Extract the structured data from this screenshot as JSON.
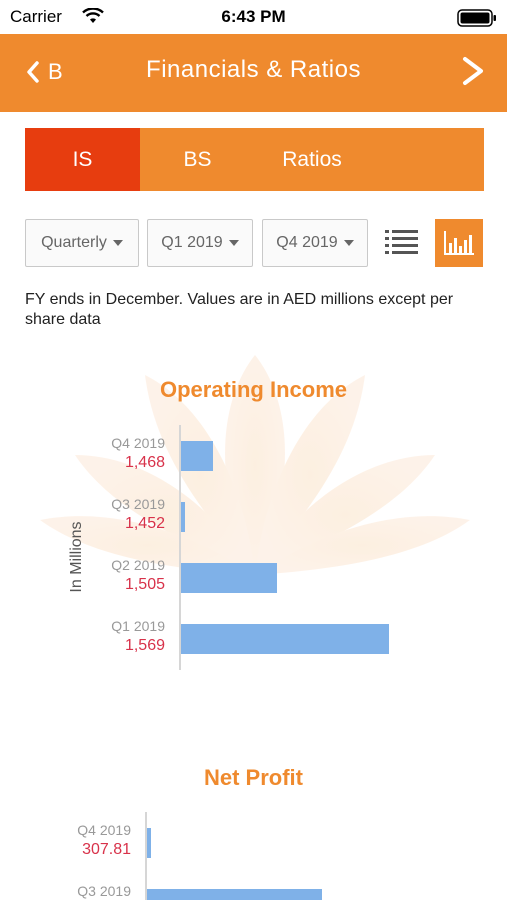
{
  "status": {
    "carrier": "Carrier",
    "time": "6:43 PM"
  },
  "nav": {
    "back_label": "B",
    "title": "Financials & Ratios"
  },
  "tabs": [
    {
      "label": "IS",
      "active": true
    },
    {
      "label": "BS",
      "active": false
    },
    {
      "label": "Ratios",
      "active": false
    }
  ],
  "filters": {
    "period": "Quarterly",
    "from": "Q1 2019",
    "to": "Q4 2019"
  },
  "note": "FY ends in December. Values are in AED millions except per share data",
  "colors": {
    "accent": "#ef8a2e",
    "active_tab": "#e73d0f",
    "bar": "#7fb1e8",
    "value_text": "#d8324a"
  },
  "icons": {
    "back": "chevron-left-icon",
    "forward": "chevron-right-icon",
    "list": "list-icon",
    "chart": "bar-chart-icon"
  },
  "chart_data": [
    {
      "type": "bar",
      "orientation": "horizontal",
      "title": "Operating Income",
      "ylabel": "In Millions",
      "categories": [
        "Q4 2019",
        "Q3 2019",
        "Q2 2019",
        "Q1 2019"
      ],
      "values": [
        1468,
        1452,
        1505,
        1569
      ],
      "value_labels": [
        "1,468",
        "1,452",
        "1,505",
        "1,569"
      ]
    },
    {
      "type": "bar",
      "orientation": "horizontal",
      "title": "Net Profit",
      "categories": [
        "Q4 2019",
        "Q3 2019"
      ],
      "values": [
        307.81,
        null
      ],
      "value_labels": [
        "307.81",
        ""
      ]
    }
  ]
}
